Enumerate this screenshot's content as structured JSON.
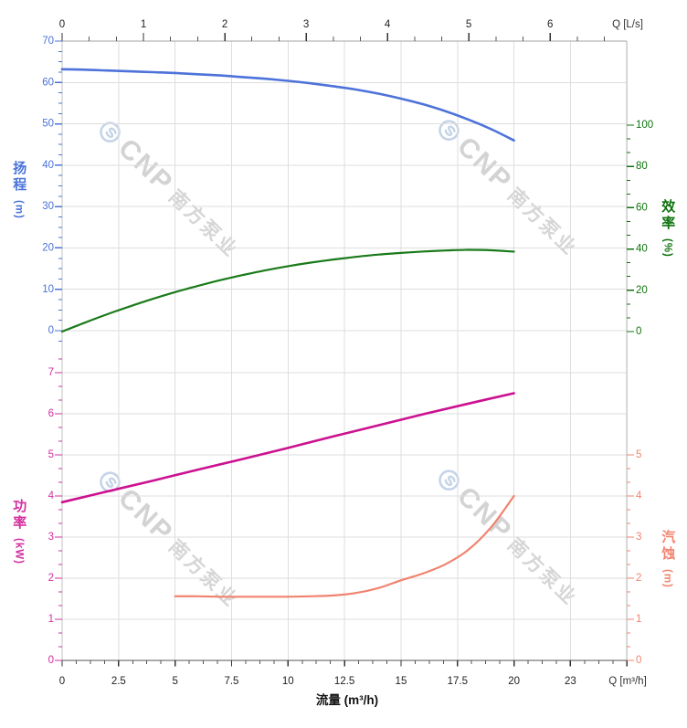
{
  "chart": {
    "background": "#ffffff",
    "watermark": {
      "logo_icon": "cnp-logo",
      "brand": "CNP",
      "company": "南方泵业",
      "text_color": "#d3d3d3",
      "logo_color": "#c5d4e8"
    },
    "axes": {
      "flow_top": {
        "title": "Q [L/s]",
        "tick_labels": [
          "0",
          "1",
          "2",
          "3",
          "4",
          "5",
          "6"
        ],
        "tick_values": [
          0,
          1,
          2,
          3,
          4,
          5,
          6
        ],
        "color": "#333333"
      },
      "flow_bottom": {
        "title": "Q [m³/h]",
        "axis_label": "流量 (m³/h)",
        "tick_labels": [
          "0",
          "2.5",
          "5",
          "7.5",
          "10",
          "12.5",
          "15",
          "17.5",
          "20",
          "23"
        ],
        "tick_values": [
          0,
          2.5,
          5,
          7.5,
          10,
          12.5,
          15,
          17.5,
          20,
          22.5
        ],
        "color": "#333333"
      },
      "head": {
        "name": "扬程",
        "unit": "(m)",
        "tick_labels": [
          "0",
          "10",
          "20",
          "30",
          "40",
          "50",
          "60",
          "70"
        ],
        "tick_values": [
          0,
          10,
          20,
          30,
          40,
          50,
          60,
          70
        ],
        "color": "#4a73d9"
      },
      "efficiency": {
        "name": "效率",
        "unit": "(%)",
        "tick_labels": [
          "0",
          "20",
          "40",
          "60",
          "80",
          "100"
        ],
        "tick_values": [
          0,
          20,
          40,
          60,
          80,
          100
        ],
        "color": "#0d730d"
      },
      "power": {
        "name": "功率",
        "unit": "(kW)",
        "tick_labels": [
          "0",
          "1",
          "2",
          "3",
          "4",
          "5",
          "6",
          "7"
        ],
        "tick_values": [
          0,
          1,
          2,
          3,
          4,
          5,
          6,
          7
        ],
        "color": "#d42fa0"
      },
      "npsh": {
        "name": "汽蚀",
        "unit": "(m)",
        "tick_labels": [
          "0",
          "1",
          "2",
          "3",
          "4",
          "5"
        ],
        "tick_values": [
          0,
          1,
          2,
          3,
          4,
          5
        ],
        "color": "#f2836e"
      }
    }
  },
  "chart_data": [
    {
      "type": "line",
      "name": "扬程",
      "series_key": "head",
      "axis": "head",
      "color": "#4d72d9",
      "width": 2.6,
      "x": [
        0,
        1,
        2,
        3,
        4,
        5,
        6,
        7,
        8,
        9,
        10,
        11,
        12,
        13,
        14,
        15,
        16,
        17,
        18,
        19,
        20
      ],
      "y": [
        63.2,
        63.1,
        62.9,
        62.7,
        62.5,
        62.3,
        62.0,
        61.7,
        61.3,
        60.9,
        60.4,
        59.8,
        59.1,
        58.3,
        57.3,
        56.1,
        54.7,
        53.0,
        51.0,
        48.7,
        46.0
      ]
    },
    {
      "type": "line",
      "name": "效率",
      "series_key": "efficiency",
      "axis": "efficiency",
      "color": "#1a7a1a",
      "width": 2.2,
      "x": [
        0,
        1,
        2,
        3,
        4,
        5,
        6,
        7,
        8,
        9,
        10,
        11,
        12,
        13,
        14,
        15,
        16,
        17,
        18,
        19,
        20
      ],
      "y": [
        0,
        4.3,
        8.4,
        12.2,
        15.8,
        19.1,
        22.1,
        24.9,
        27.4,
        29.7,
        31.7,
        33.4,
        34.9,
        36.2,
        37.3,
        38.1,
        38.8,
        39.3,
        39.6,
        39.4,
        38.7
      ]
    },
    {
      "type": "line",
      "name": "功率",
      "series_key": "power",
      "axis": "power",
      "color": "#cc1190",
      "width": 2.6,
      "x": [
        0,
        2,
        4,
        6,
        8,
        10,
        12,
        14,
        16,
        18,
        20
      ],
      "y": [
        3.85,
        4.11,
        4.37,
        4.64,
        4.9,
        5.17,
        5.45,
        5.72,
        5.99,
        6.25,
        6.5
      ]
    },
    {
      "type": "line",
      "name": "汽蚀",
      "series_key": "npsh",
      "axis": "npsh",
      "color": "#f0836f",
      "width": 2.2,
      "x": [
        5,
        6,
        7,
        8,
        9,
        10,
        11,
        12,
        13,
        14,
        15,
        16,
        17,
        18,
        19,
        20
      ],
      "y": [
        1.56,
        1.56,
        1.55,
        1.55,
        1.55,
        1.55,
        1.56,
        1.58,
        1.64,
        1.76,
        1.95,
        2.12,
        2.35,
        2.7,
        3.25,
        4.0
      ]
    }
  ]
}
